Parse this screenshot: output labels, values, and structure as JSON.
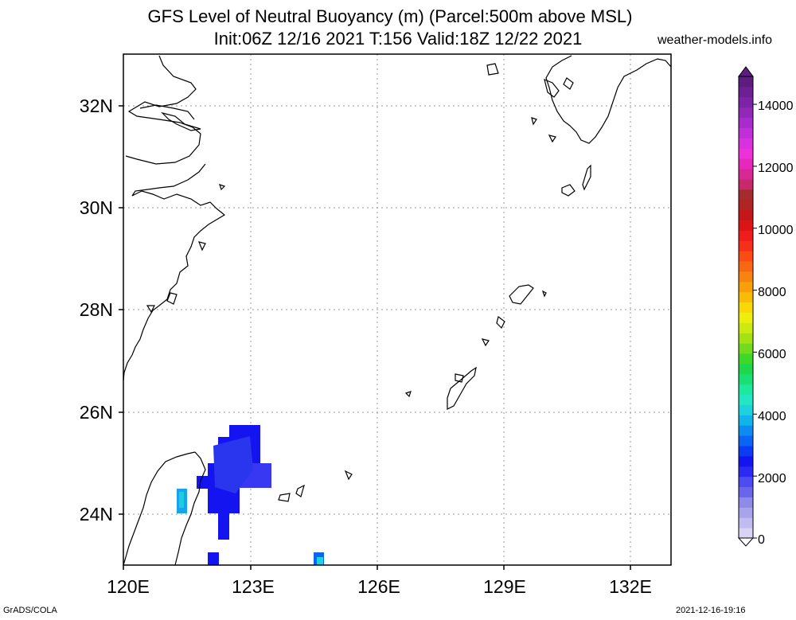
{
  "title": {
    "line1": "GFS Level of Neutral Buoyancy (m) (Parcel:500m above MSL)",
    "line2": "Init:06Z 12/16 2021 T:156 Valid:18Z 12/22 2021"
  },
  "site": "weather-models.info",
  "footer": {
    "left": "GrADS/COLA",
    "right": "2021-12-16-19:16"
  },
  "axes": {
    "x_ticks": [
      "120E",
      "123E",
      "126E",
      "129E",
      "132E"
    ],
    "y_ticks": [
      "32N",
      "30N",
      "28N",
      "26N",
      "24N"
    ]
  },
  "colorbar": {
    "labels": [
      "0",
      "2000",
      "4000",
      "6000",
      "8000",
      "10000",
      "12000",
      "14000"
    ],
    "colors": [
      "#d8d4f4",
      "#c0bcf0",
      "#a8a4ec",
      "#8e8ae8",
      "#6a66ec",
      "#4c4cf0",
      "#2a2af0",
      "#1414f0",
      "#0a3cf4",
      "#0a64f4",
      "#0c8cf0",
      "#10b4ea",
      "#1cd2de",
      "#22e6c4",
      "#1ce8a0",
      "#18e074",
      "#1ed84c",
      "#3ed82a",
      "#72dc1c",
      "#a4e214",
      "#ccea10",
      "#eeee0c",
      "#f8d808",
      "#f8bc08",
      "#f8a008",
      "#f88410",
      "#f86814",
      "#f84c14",
      "#f43018",
      "#ee1c1c",
      "#dc1414",
      "#c41818",
      "#b02424",
      "#a42c2c",
      "#c8286c",
      "#d82894",
      "#e628bc",
      "#ee30d8",
      "#d832e0",
      "#c030d8",
      "#a82ccc",
      "#9028b8",
      "#7c24a8",
      "#6c2094",
      "#5c1c80"
    ]
  },
  "legend_colors": {
    "frame": "#000000",
    "grid": "#999999",
    "field_dark": "#1212f0",
    "field_mid": "#3b3bf2",
    "field_cyan": "#10b4ea"
  }
}
